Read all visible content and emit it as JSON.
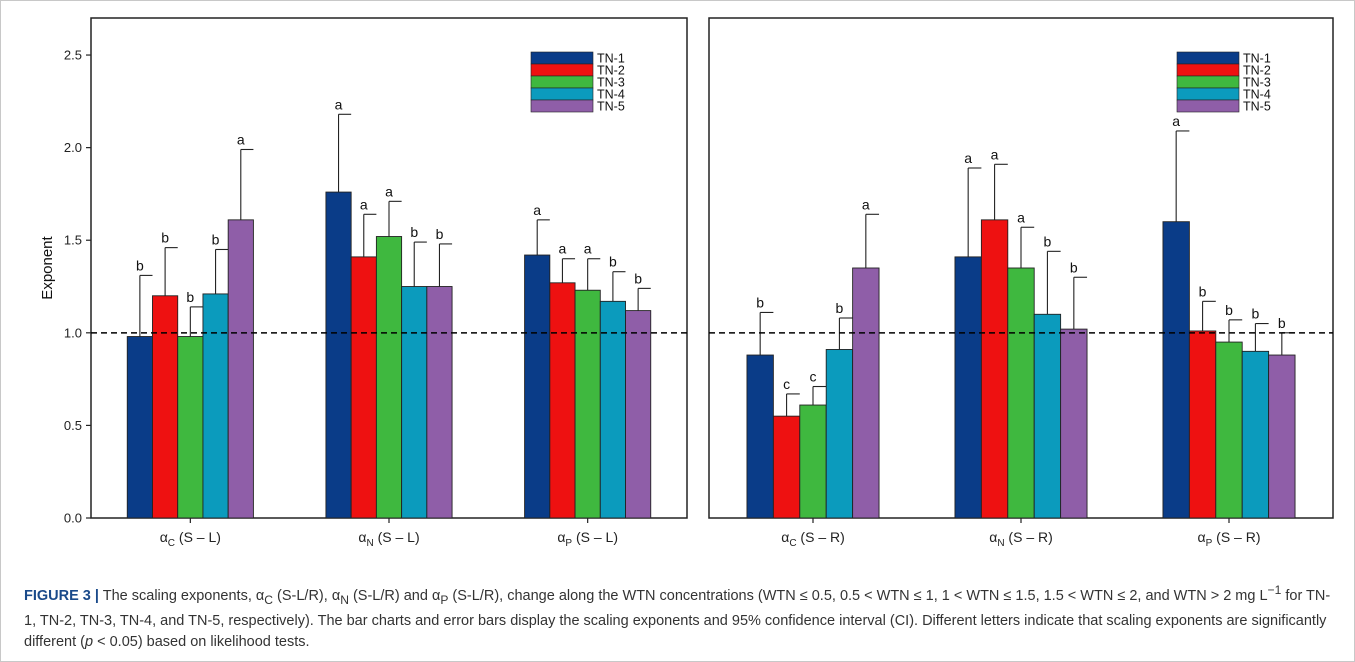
{
  "colors": {
    "TN-1": "#0a3c88",
    "TN-2": "#ee1111",
    "TN-3": "#3fb83f",
    "TN-4": "#0b9bbd",
    "TN-5": "#8f5ea8",
    "dashed_reference_line": "#000000"
  },
  "chart_data": [
    {
      "type": "bar",
      "panel": "left",
      "ylabel": "Exponent",
      "ylim": [
        0,
        2.7
      ],
      "yticks": [
        "0.0",
        "0.5",
        "1.0",
        "1.5",
        "2.0",
        "2.5"
      ],
      "reference_line": 1.0,
      "grid": false,
      "legend_position": "top-right",
      "categories": [
        {
          "base": "α",
          "sub": "C",
          "suffix": " (S – L)"
        },
        {
          "base": "α",
          "sub": "N",
          "suffix": " (S – L)"
        },
        {
          "base": "α",
          "sub": "P",
          "suffix": " (S – L)"
        }
      ],
      "series": [
        {
          "name": "TN-1",
          "values": [
            0.98,
            1.76,
            1.42
          ],
          "upper": [
            1.31,
            2.18,
            1.61
          ],
          "letters": [
            "b",
            "a",
            "a"
          ]
        },
        {
          "name": "TN-2",
          "values": [
            1.2,
            1.41,
            1.27
          ],
          "upper": [
            1.46,
            1.64,
            1.4
          ],
          "letters": [
            "b",
            "a",
            "a"
          ]
        },
        {
          "name": "TN-3",
          "values": [
            0.98,
            1.52,
            1.23
          ],
          "upper": [
            1.14,
            1.71,
            1.4
          ],
          "letters": [
            "b",
            "a",
            "a"
          ]
        },
        {
          "name": "TN-4",
          "values": [
            1.21,
            1.25,
            1.17
          ],
          "upper": [
            1.45,
            1.49,
            1.33
          ],
          "letters": [
            "b",
            "b",
            "b"
          ]
        },
        {
          "name": "TN-5",
          "values": [
            1.61,
            1.25,
            1.12
          ],
          "upper": [
            1.99,
            1.48,
            1.24
          ],
          "letters": [
            "a",
            "b",
            "b"
          ]
        }
      ]
    },
    {
      "type": "bar",
      "panel": "right",
      "ylim": [
        0,
        2.7
      ],
      "reference_line": 1.0,
      "grid": false,
      "legend_position": "top-right",
      "categories": [
        {
          "base": "α",
          "sub": "C",
          "suffix": " (S – R)"
        },
        {
          "base": "α",
          "sub": "N",
          "suffix": " (S – R)"
        },
        {
          "base": "α",
          "sub": "P",
          "suffix": " (S – R)"
        }
      ],
      "series": [
        {
          "name": "TN-1",
          "values": [
            0.88,
            1.41,
            1.6
          ],
          "upper": [
            1.11,
            1.89,
            2.09
          ],
          "letters": [
            "b",
            "a",
            "a"
          ]
        },
        {
          "name": "TN-2",
          "values": [
            0.55,
            1.61,
            1.01
          ],
          "upper": [
            0.67,
            1.91,
            1.17
          ],
          "letters": [
            "c",
            "a",
            "b"
          ]
        },
        {
          "name": "TN-3",
          "values": [
            0.61,
            1.35,
            0.95
          ],
          "upper": [
            0.71,
            1.57,
            1.07
          ],
          "letters": [
            "c",
            "a",
            "b"
          ]
        },
        {
          "name": "TN-4",
          "values": [
            0.91,
            1.1,
            0.9
          ],
          "upper": [
            1.08,
            1.44,
            1.05
          ],
          "letters": [
            "b",
            "b",
            "b"
          ]
        },
        {
          "name": "TN-5",
          "values": [
            1.35,
            1.02,
            0.88
          ],
          "upper": [
            1.64,
            1.3,
            1.0
          ],
          "letters": [
            "a",
            "b",
            "b"
          ]
        }
      ]
    }
  ],
  "caption": {
    "label": "FIGURE 3 |",
    "segments": [
      {
        "t": " The scaling exponents, α"
      },
      {
        "t": "C",
        "s": "sub"
      },
      {
        "t": " (S-L/R), α"
      },
      {
        "t": "N",
        "s": "sub"
      },
      {
        "t": " (S-L/R) and α"
      },
      {
        "t": "P",
        "s": "sub"
      },
      {
        "t": " (S-L/R), change along the WTN concentrations (WTN ≤ 0.5, 0.5 < WTN ≤ 1, 1 < WTN ≤ 1.5, 1.5 < WTN ≤ 2, and WTN > 2 mg L"
      },
      {
        "t": "−1",
        "s": "sup"
      },
      {
        "t": " for TN-1, TN-2, TN-3, TN-4, and TN-5, respectively). The bar charts and error bars display the scaling exponents and 95% confidence interval (CI). Different letters indicate that scaling exponents are significantly different ("
      },
      {
        "t": "p",
        "s": "i"
      },
      {
        "t": " < 0.05) based on likelihood tests."
      }
    ]
  }
}
